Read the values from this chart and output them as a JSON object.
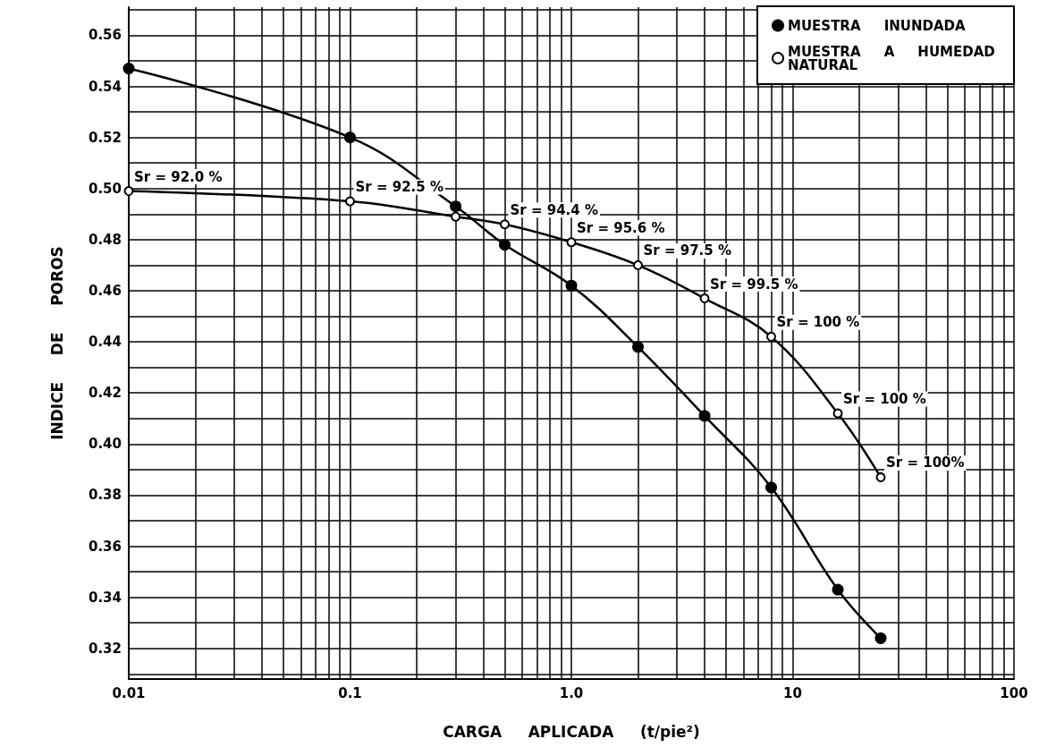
{
  "chart_data": {
    "type": "line",
    "xlabel": "CARGA     APLICADA     (t/pie²)",
    "ylabel": "INDICE     DE     POROS",
    "log": "x",
    "xlim": [
      0.01,
      100
    ],
    "ylim": [
      0.308,
      0.571
    ],
    "xticks": [
      0.01,
      {
        "value": 0.02,
        "label": null
      },
      {
        "value": 0.03,
        "label": null
      },
      {
        "value": 0.04,
        "label": null
      },
      {
        "value": 0.05,
        "label": null
      },
      {
        "value": 0.06,
        "label": null
      },
      {
        "value": 0.07,
        "label": null
      },
      {
        "value": 0.08,
        "label": null
      },
      {
        "value": 0.09,
        "label": null
      },
      0.1,
      {
        "value": 0.2,
        "label": null
      },
      {
        "value": 0.3,
        "label": null
      },
      {
        "value": 0.4,
        "label": null
      },
      {
        "value": 0.5,
        "label": null
      },
      {
        "value": 0.6,
        "label": null
      },
      {
        "value": 0.7,
        "label": null
      },
      {
        "value": 0.8,
        "label": null
      },
      {
        "value": 0.9,
        "label": null
      },
      {
        "value": 1,
        "label": "1.0"
      },
      {
        "value": 2,
        "label": null
      },
      {
        "value": 3,
        "label": null
      },
      {
        "value": 4,
        "label": null
      },
      {
        "value": 5,
        "label": null
      },
      {
        "value": 6,
        "label": null
      },
      {
        "value": 7,
        "label": null
      },
      {
        "value": 8,
        "label": null
      },
      {
        "value": 9,
        "label": null
      },
      10,
      {
        "value": 20,
        "label": null
      },
      {
        "value": 30,
        "label": null
      },
      {
        "value": 40,
        "label": null
      },
      {
        "value": 50,
        "label": null
      },
      {
        "value": 60,
        "label": null
      },
      {
        "value": 70,
        "label": null
      },
      {
        "value": 80,
        "label": null
      },
      {
        "value": 90,
        "label": null
      },
      100
    ],
    "yticks": [
      {
        "value": 0.31,
        "label": null
      },
      0.32,
      {
        "value": 0.33,
        "label": null
      },
      0.34,
      {
        "value": 0.35,
        "label": null
      },
      0.36,
      {
        "value": 0.37,
        "label": null
      },
      0.38,
      {
        "value": 0.39,
        "label": null
      },
      {
        "value": 0.4,
        "label": "0.40"
      },
      {
        "value": 0.41,
        "label": null
      },
      0.42,
      {
        "value": 0.43,
        "label": null
      },
      0.44,
      {
        "value": 0.45,
        "label": null
      },
      0.46,
      {
        "value": 0.47,
        "label": null
      },
      0.48,
      {
        "value": 0.49,
        "label": null
      },
      {
        "value": 0.5,
        "label": "0.50"
      },
      {
        "value": 0.51,
        "label": null
      },
      0.52,
      {
        "value": 0.53,
        "label": null
      },
      0.54,
      {
        "value": 0.55,
        "label": null
      },
      0.56,
      {
        "value": 0.57,
        "label": null
      }
    ],
    "grid": true,
    "legend": "top right",
    "marker": "circle",
    "line_style": "solid",
    "series": [
      {
        "name": "MUESTRA     INUNDADA",
        "color": "#000000",
        "x": [
          0.01,
          0.1,
          0.3,
          0.5,
          1,
          2,
          4,
          8,
          16,
          25
        ],
        "values": [
          0.547,
          0.52,
          0.493,
          0.478,
          0.462,
          0.438,
          0.411,
          0.383,
          0.343,
          0.324
        ]
      },
      {
        "name": "MUESTRA     A     HUMEDAD NATURAL",
        "color": "#000000",
        "x": [
          0.01,
          0.1,
          0.3,
          0.5,
          1,
          2,
          4,
          8,
          16,
          25
        ],
        "values": [
          0.499,
          0.495,
          0.489,
          0.486,
          0.479,
          0.47,
          0.457,
          0.442,
          0.412,
          0.387
        ]
      }
    ],
    "annotations": [
      {
        "text": "Sr = 92.0 %",
        "x": 0.01,
        "y": 0.499
      },
      {
        "text": "Sr = 92.5 %",
        "x": 0.1,
        "y": 0.495
      },
      {
        "text": "Sr = 94.4 %",
        "x": 0.5,
        "y": 0.486
      },
      {
        "text": "Sr = 95.6 %",
        "x": 1,
        "y": 0.479
      },
      {
        "text": "Sr = 97.5 %",
        "x": 2,
        "y": 0.47
      },
      {
        "text": "Sr = 99.5 %",
        "x": 4,
        "y": 0.457
      },
      {
        "text": "Sr = 100 %",
        "x": 8,
        "y": 0.442
      },
      {
        "text": "Sr = 100 %",
        "x": 16,
        "y": 0.412
      },
      {
        "text": "Sr = 100%",
        "x": 25,
        "y": 0.387
      }
    ]
  }
}
